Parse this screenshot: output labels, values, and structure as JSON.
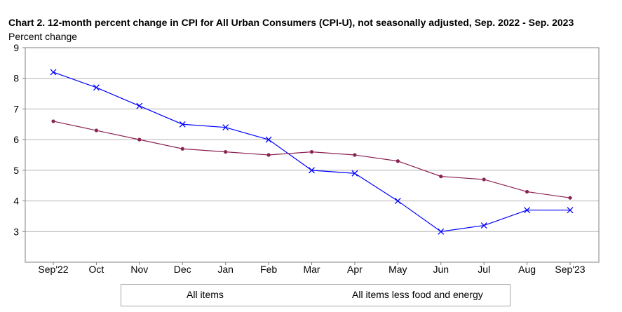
{
  "chart_data": {
    "type": "line",
    "title": "Chart 2. 12-month percent change in CPI for All Urban Consumers (CPI-U), not seasonally adjusted, Sep. 2022 - Sep. 2023",
    "ylabel": "Percent change",
    "xlabel": "",
    "categories": [
      "Sep'22",
      "Oct",
      "Nov",
      "Dec",
      "Jan",
      "Feb",
      "Mar",
      "Apr",
      "May",
      "Jun",
      "Jul",
      "Aug",
      "Sep'23"
    ],
    "ylim": [
      2,
      9
    ],
    "yticks": [
      3,
      4,
      5,
      6,
      7,
      8,
      9
    ],
    "grid": true,
    "legend_position": "bottom",
    "series": [
      {
        "name": "All items",
        "color": "#0000ff",
        "marker": "x",
        "values": [
          8.2,
          7.7,
          7.1,
          6.5,
          6.4,
          6.0,
          5.0,
          4.9,
          4.0,
          3.0,
          3.2,
          3.7,
          3.7
        ]
      },
      {
        "name": "All items less food and energy",
        "color": "#8b2252",
        "marker": "circle",
        "values": [
          6.6,
          6.3,
          6.0,
          5.7,
          5.6,
          5.5,
          5.6,
          5.5,
          5.3,
          4.8,
          4.7,
          4.3,
          4.1
        ]
      }
    ]
  }
}
